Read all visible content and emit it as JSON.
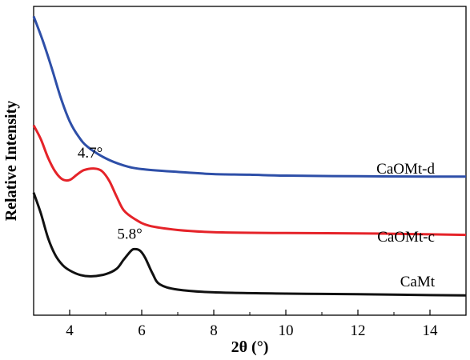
{
  "chart_data": {
    "type": "line",
    "xlabel": "2θ (°)",
    "ylabel": "Relative Intensity",
    "xlim": [
      3,
      15
    ],
    "ylim": [
      0,
      100
    ],
    "xticks": [
      4,
      6,
      8,
      10,
      12,
      14
    ],
    "yticks_shown": false,
    "grid": false,
    "series": [
      {
        "name": "CaOMt-d",
        "color": "#2e4fa8",
        "x": [
          3.0,
          3.25,
          3.5,
          3.75,
          4.0,
          4.25,
          4.5,
          5.0,
          5.5,
          6.0,
          7.0,
          8.0,
          9.0,
          10.0,
          12.0,
          14.0,
          15.0
        ],
        "y": [
          96.8,
          89.0,
          80.1,
          70.5,
          62.8,
          57.8,
          54.5,
          50.8,
          48.5,
          47.3,
          46.4,
          45.7,
          45.5,
          45.2,
          45.0,
          44.9,
          44.9
        ]
      },
      {
        "name": "CaOMt-c",
        "color": "#e52329",
        "x": [
          3.0,
          3.2,
          3.4,
          3.6,
          3.8,
          4.0,
          4.2,
          4.4,
          4.7,
          4.9,
          5.1,
          5.3,
          5.5,
          5.8,
          6.2,
          7.0,
          8.0,
          10.0,
          12.0,
          14.0,
          15.0
        ],
        "y": [
          61.5,
          57.0,
          51.0,
          46.5,
          44.0,
          43.8,
          45.5,
          47.0,
          47.5,
          46.6,
          43.5,
          38.5,
          34.0,
          31.2,
          29.0,
          27.6,
          26.9,
          26.6,
          26.5,
          26.2,
          26.0
        ]
      },
      {
        "name": "CaMt",
        "color": "#111111",
        "x": [
          3.0,
          3.2,
          3.4,
          3.6,
          3.8,
          4.0,
          4.3,
          4.6,
          5.0,
          5.3,
          5.5,
          5.7,
          5.8,
          5.95,
          6.1,
          6.3,
          6.5,
          7.0,
          8.0,
          10.0,
          12.0,
          14.0,
          15.0
        ],
        "y": [
          39.7,
          33.0,
          25.0,
          19.5,
          16.3,
          14.5,
          13.0,
          12.6,
          13.3,
          15.0,
          18.0,
          20.8,
          21.4,
          20.9,
          18.5,
          13.5,
          10.0,
          8.3,
          7.4,
          7.0,
          6.8,
          6.5,
          6.4
        ]
      }
    ],
    "annotations": [
      {
        "text": "4.7°",
        "x": 4.7,
        "y": 51.0
      },
      {
        "text": "5.8°",
        "x": 5.8,
        "y": 24.8
      }
    ]
  }
}
